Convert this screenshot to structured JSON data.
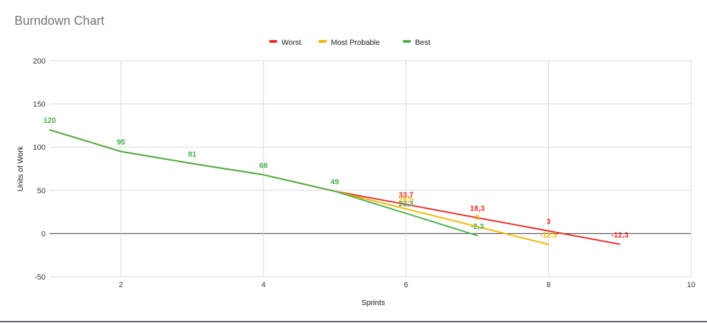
{
  "chart_title": "Burndown Chart",
  "chart_data": {
    "type": "line",
    "title": "Burndown Chart",
    "xlabel": "Sprints",
    "ylabel": "Units of Work",
    "xlim": [
      1,
      10
    ],
    "ylim": [
      -50,
      200
    ],
    "x_ticks": [
      2,
      4,
      6,
      8,
      10
    ],
    "y_ticks": [
      -50,
      0,
      50,
      100,
      150,
      200
    ],
    "grid": true,
    "legend_position": "top",
    "series": [
      {
        "name": "Worst",
        "color": "#ea2a2a",
        "points": [
          [
            1,
            120
          ],
          [
            2,
            95
          ],
          [
            3,
            81
          ],
          [
            4,
            68
          ],
          [
            5,
            49
          ],
          [
            6,
            33.7
          ],
          [
            7,
            18.3
          ],
          [
            8,
            3
          ],
          [
            9,
            -12.3
          ]
        ]
      },
      {
        "name": "Most Probable",
        "color": "#f4b400",
        "points": [
          [
            1,
            120
          ],
          [
            2,
            95
          ],
          [
            3,
            81
          ],
          [
            4,
            68
          ],
          [
            5,
            49
          ],
          [
            6,
            28.5
          ],
          [
            7,
            8
          ],
          [
            8,
            -12.5
          ]
        ]
      },
      {
        "name": "Best",
        "color": "#4caf50",
        "points": [
          [
            1,
            120
          ],
          [
            2,
            95
          ],
          [
            3,
            81
          ],
          [
            4,
            68
          ],
          [
            5,
            49
          ],
          [
            6,
            23.3
          ],
          [
            7,
            -2.3
          ]
        ]
      }
    ],
    "data_labels": [
      {
        "text": "120",
        "x": 1,
        "y": 120,
        "series": "Best"
      },
      {
        "text": "95",
        "x": 2,
        "y": 95,
        "series": "Best"
      },
      {
        "text": "81",
        "x": 3,
        "y": 81,
        "series": "Best"
      },
      {
        "text": "68",
        "x": 4,
        "y": 68,
        "series": "Best"
      },
      {
        "text": "49",
        "x": 5,
        "y": 49,
        "series": "Best"
      },
      {
        "text": "33,7",
        "x": 6,
        "y": 33.7,
        "series": "Worst"
      },
      {
        "text": "28,5",
        "x": 6,
        "y": 28.5,
        "series": "Most Probable"
      },
      {
        "text": "23,3",
        "x": 6,
        "y": 23.3,
        "series": "Best"
      },
      {
        "text": "18,3",
        "x": 7,
        "y": 18.3,
        "series": "Worst"
      },
      {
        "text": "8",
        "x": 7,
        "y": 8,
        "series": "Most Probable"
      },
      {
        "text": "-2,3",
        "x": 7,
        "y": -2.3,
        "series": "Best"
      },
      {
        "text": "3",
        "x": 8,
        "y": 3,
        "series": "Worst"
      },
      {
        "text": "-12,5",
        "x": 8,
        "y": -12.5,
        "series": "Most Probable"
      },
      {
        "text": "-12,3",
        "x": 9,
        "y": -12.3,
        "series": "Worst"
      }
    ]
  }
}
